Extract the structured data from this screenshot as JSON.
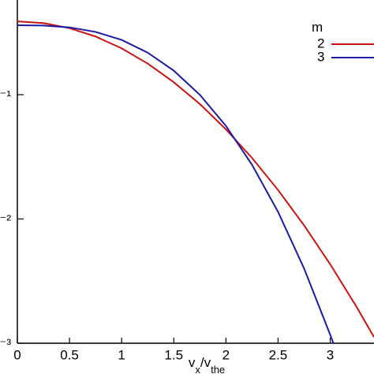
{
  "chart_data": {
    "type": "line",
    "xlabel": [
      "v",
      "x",
      "/v",
      "the"
    ],
    "legend_title": "m",
    "log_y": true,
    "xlim": [
      0,
      3.42
    ],
    "ylim": [
      0.001,
      0.578
    ],
    "xticks": [
      0,
      0.5,
      1,
      1.5,
      2,
      2.5,
      3
    ],
    "yticks": [
      {
        "value": 0.1,
        "label": "10⁻¹"
      },
      {
        "value": 0.01,
        "label": "10⁻²"
      },
      {
        "value": 0.001,
        "label": "10⁻³"
      }
    ],
    "series": [
      {
        "name": "2",
        "color": "#cc1111",
        "x": [
          0,
          0.25,
          0.5,
          0.75,
          1,
          1.25,
          1.5,
          1.75,
          2,
          2.25,
          2.5,
          2.75,
          3,
          3.25,
          3.42
        ],
        "values": [
          0.389,
          0.377,
          0.343,
          0.294,
          0.236,
          0.178,
          0.126,
          0.0841,
          0.0526,
          0.031,
          0.0171,
          0.00887,
          0.00432,
          0.00198,
          0.00112
        ]
      },
      {
        "name": "3",
        "color": "#1a1aa6",
        "x": [
          0,
          0.25,
          0.5,
          0.75,
          1,
          1.25,
          1.5,
          1.75,
          2,
          2.25,
          2.5,
          2.75,
          3,
          3.03
        ],
        "values": [
          0.362,
          0.36,
          0.348,
          0.32,
          0.276,
          0.218,
          0.156,
          0.0998,
          0.0561,
          0.0273,
          0.0114,
          0.00399,
          0.00117,
          0.001
        ]
      }
    ]
  }
}
